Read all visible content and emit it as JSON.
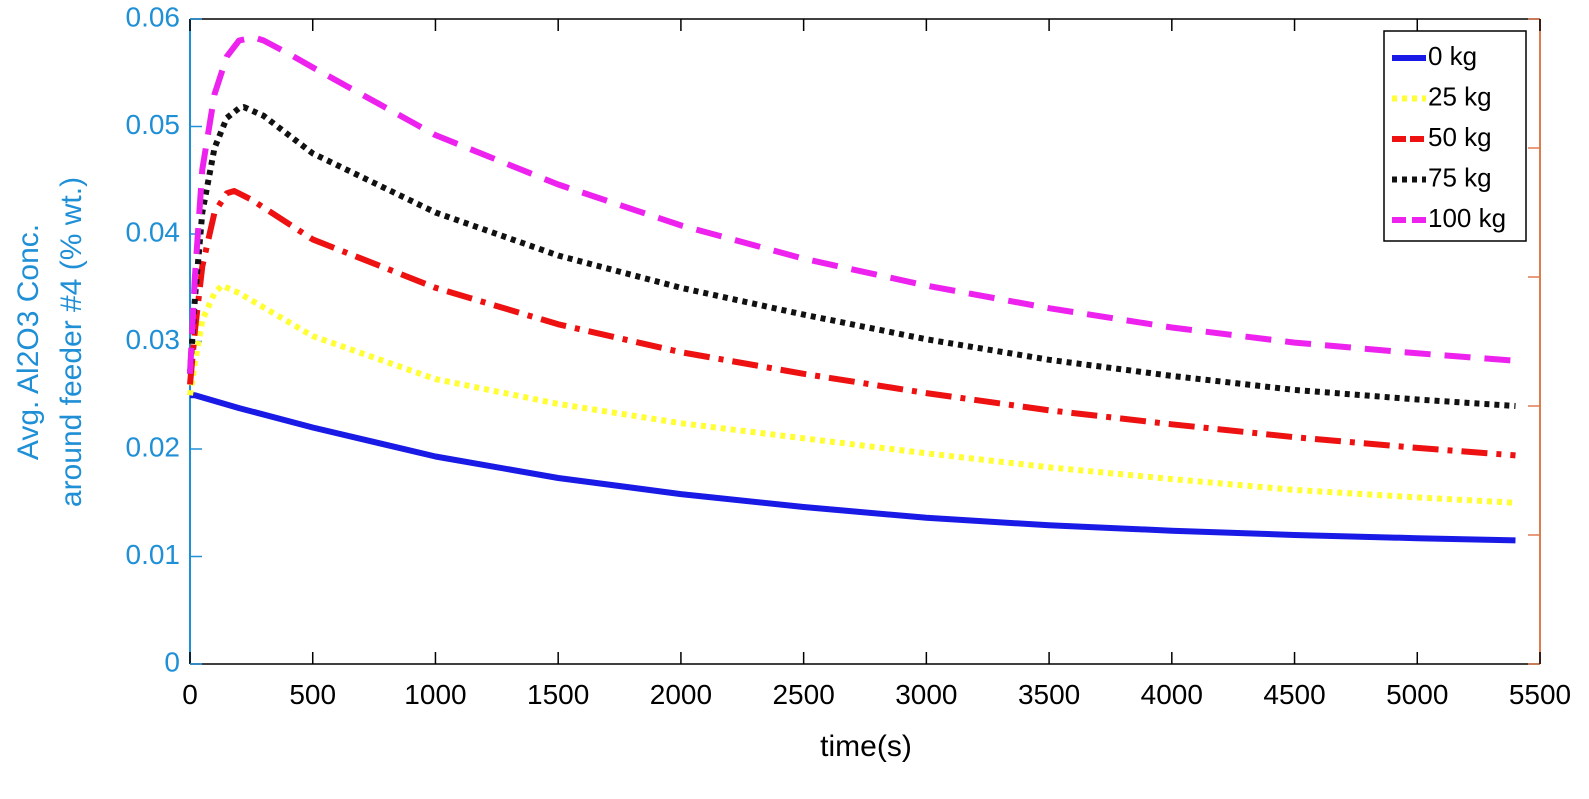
{
  "chart_data": {
    "type": "line",
    "title": "",
    "xlabel": "time(s)",
    "ylabel_lines": [
      "Avg. Al2O3 Conc.",
      "around feeder #4 (% wt.)"
    ],
    "xlim": [
      0,
      5500
    ],
    "ylim": [
      0,
      0.06
    ],
    "x_ticks": [
      0,
      500,
      1000,
      1500,
      2000,
      2500,
      3000,
      3500,
      4000,
      4500,
      5000,
      5500
    ],
    "x_tick_labels": [
      "0",
      "500",
      "1000",
      "1500",
      "2000",
      "2500",
      "3000",
      "3500",
      "4000",
      "4500",
      "5000",
      "5500"
    ],
    "y_ticks": [
      0,
      0.01,
      0.02,
      0.03,
      0.04,
      0.05,
      0.06
    ],
    "y_tick_labels": [
      "0",
      "0.01",
      "0.02",
      "0.03",
      "0.04",
      "0.05",
      "0.06"
    ],
    "grid": false,
    "legend_position": "top-right",
    "left_axis_color": "#1f8fd6",
    "right_axis_color": "#e07a4f",
    "series": [
      {
        "name": "0 kg",
        "color": "#1a1ae6",
        "style": "solid",
        "x": [
          0,
          20,
          200,
          500,
          1000,
          1500,
          2000,
          2500,
          3000,
          3500,
          4000,
          4500,
          5000,
          5400
        ],
        "y": [
          0.025,
          0.025,
          0.0238,
          0.022,
          0.0193,
          0.0173,
          0.0158,
          0.0146,
          0.0136,
          0.0129,
          0.0124,
          0.012,
          0.0117,
          0.0115
        ]
      },
      {
        "name": "25 kg",
        "color": "#ffff33",
        "style": "dotted",
        "x": [
          0,
          20,
          50,
          100,
          130,
          200,
          500,
          1000,
          1500,
          2000,
          2500,
          3000,
          3500,
          4000,
          4500,
          5000,
          5400
        ],
        "y": [
          0.025,
          0.028,
          0.032,
          0.0345,
          0.0352,
          0.0345,
          0.0305,
          0.0265,
          0.0242,
          0.0224,
          0.021,
          0.0196,
          0.0183,
          0.0172,
          0.0162,
          0.0155,
          0.015
        ]
      },
      {
        "name": "50 kg",
        "color": "#ee1111",
        "style": "dashdot",
        "x": [
          0,
          20,
          50,
          100,
          150,
          180,
          250,
          500,
          1000,
          1500,
          2000,
          2500,
          3000,
          3500,
          4000,
          4500,
          5000,
          5400
        ],
        "y": [
          0.026,
          0.031,
          0.037,
          0.042,
          0.0438,
          0.044,
          0.0432,
          0.0395,
          0.035,
          0.0316,
          0.029,
          0.027,
          0.0252,
          0.0236,
          0.0223,
          0.0211,
          0.0201,
          0.0194
        ]
      },
      {
        "name": "75 kg",
        "color": "#111111",
        "style": "dotted",
        "x": [
          0,
          20,
          50,
          100,
          150,
          200,
          220,
          300,
          500,
          1000,
          1500,
          2000,
          2500,
          3000,
          3500,
          4000,
          4500,
          5000,
          5400
        ],
        "y": [
          0.027,
          0.034,
          0.042,
          0.048,
          0.0508,
          0.0517,
          0.0518,
          0.051,
          0.0475,
          0.042,
          0.038,
          0.035,
          0.0325,
          0.0302,
          0.0283,
          0.0268,
          0.0255,
          0.0246,
          0.024
        ]
      },
      {
        "name": "100 kg",
        "color": "#ee22ee",
        "style": "dashed",
        "x": [
          0,
          20,
          50,
          100,
          150,
          200,
          260,
          300,
          400,
          500,
          1000,
          1500,
          2000,
          2500,
          3000,
          3500,
          4000,
          4500,
          5000,
          5400
        ],
        "y": [
          0.027,
          0.036,
          0.046,
          0.053,
          0.0565,
          0.058,
          0.0583,
          0.058,
          0.0568,
          0.0555,
          0.0492,
          0.0446,
          0.0408,
          0.0377,
          0.0352,
          0.0331,
          0.0313,
          0.0299,
          0.0289,
          0.0282
        ]
      }
    ]
  }
}
